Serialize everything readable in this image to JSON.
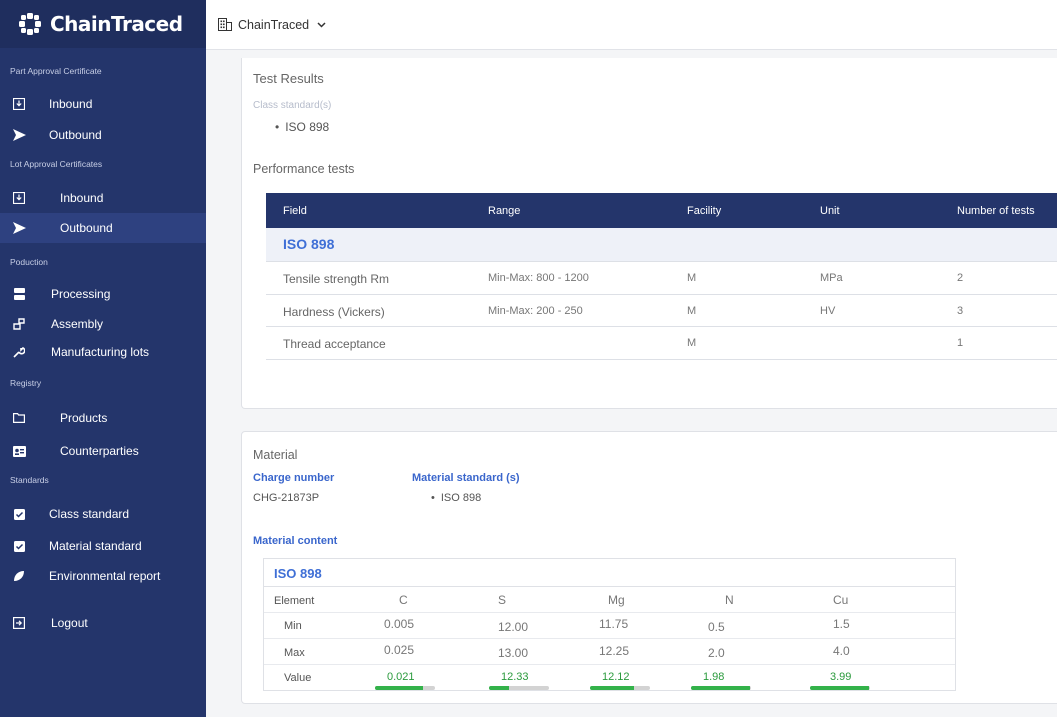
{
  "app": {
    "logo": "ChainTraced",
    "org": "ChainTraced"
  },
  "sidebar": {
    "sections": [
      "Part Approval Certificate",
      "Lot Approval Certificates",
      "Poduction",
      "Registry",
      "Standards"
    ],
    "items": [
      {
        "label": "Inbound",
        "icon": "inbox-icon"
      },
      {
        "label": "Outbound",
        "icon": "send-icon"
      },
      {
        "label": "Inbound",
        "icon": "inbox-icon"
      },
      {
        "label": "Outbound",
        "icon": "send-icon"
      },
      {
        "label": "Processing",
        "icon": "server-icon"
      },
      {
        "label": "Assembly",
        "icon": "assembly-icon"
      },
      {
        "label": "Manufacturing lots",
        "icon": "wrench-icon"
      },
      {
        "label": "Products",
        "icon": "folder-icon"
      },
      {
        "label": "Counterparties",
        "icon": "contact-card-icon"
      },
      {
        "label": "Class standard",
        "icon": "checkbox-icon"
      },
      {
        "label": "Material standard",
        "icon": "checkbox-icon"
      },
      {
        "label": "Environmental report",
        "icon": "leaf-icon"
      },
      {
        "label": "Logout",
        "icon": "logout-icon"
      }
    ]
  },
  "test_results": {
    "title": "Test Results",
    "class_standard_label": "Class standard(s)",
    "class_standards": [
      "ISO 898"
    ],
    "performance_title": "Performance tests",
    "columns": [
      "Field",
      "Range",
      "Facility",
      "Unit",
      "Number of tests"
    ],
    "group": "ISO 898",
    "rows": [
      {
        "field": "Tensile strength Rm",
        "range": "Min-Max: 800 - 1200",
        "facility": "M",
        "unit": "MPa",
        "tests": "2"
      },
      {
        "field": "Hardness (Vickers)",
        "range": "Min-Max: 200 - 250",
        "facility": "M",
        "unit": "HV",
        "tests": "3"
      },
      {
        "field": "Thread acceptance",
        "range": "",
        "facility": "M",
        "unit": "",
        "tests": "1"
      }
    ]
  },
  "material": {
    "title": "Material",
    "charge_label": "Charge number",
    "charge_value": "CHG-21873P",
    "standard_label": "Material standard (s)",
    "standards": [
      "ISO 898"
    ],
    "content_label": "Material content",
    "group": "ISO 898",
    "row_labels": [
      "Element",
      "Min",
      "Max",
      "Value"
    ],
    "elements": [
      {
        "name": "C",
        "min": "0.005",
        "max": "0.025",
        "value": "0.021",
        "level": 0.8
      },
      {
        "name": "S",
        "min": "12.00",
        "max": "13.00",
        "value": "12.33",
        "level": 0.33
      },
      {
        "name": "Mg",
        "min": "11.75",
        "max": "12.25",
        "value": "12.12",
        "level": 0.74
      },
      {
        "name": "N",
        "min": "0.5",
        "max": "2.0",
        "value": "1.98",
        "level": 0.99
      },
      {
        "name": "Cu",
        "min": "1.5",
        "max": "4.0",
        "value": "3.99",
        "level": 0.99
      }
    ]
  },
  "colors": {
    "sidebar": "#24356b",
    "accent_blue": "#3f6fd6",
    "success_green": "#33b24a"
  }
}
